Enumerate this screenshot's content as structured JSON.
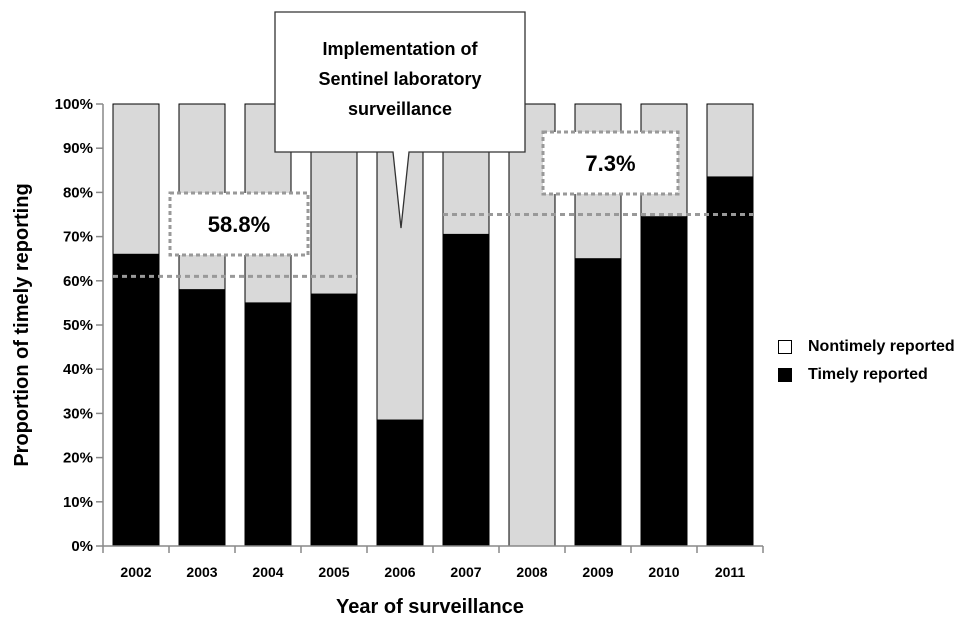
{
  "chart_data": {
    "type": "bar",
    "stacked": true,
    "categories": [
      "2002",
      "2003",
      "2004",
      "2005",
      "2006",
      "2007",
      "2008",
      "2009",
      "2010",
      "2011"
    ],
    "series": [
      {
        "name": "Timely reported",
        "values": [
          66,
          58,
          55,
          57,
          28.5,
          70.5,
          0,
          65,
          74.5,
          83.5
        ],
        "color": "#000000"
      },
      {
        "name": "Nontimely reported",
        "values": [
          34,
          42,
          45,
          43,
          71.5,
          29.5,
          100,
          35,
          25.5,
          16.5
        ],
        "color": "#d9d9d9"
      }
    ],
    "xlabel": "Year of surveillance",
    "ylabel": "Proportion of timely reporting",
    "ylim": [
      0,
      100
    ],
    "yticks": [
      "0%",
      "10%",
      "20%",
      "30%",
      "40%",
      "50%",
      "60%",
      "70%",
      "80%",
      "90%",
      "100%"
    ],
    "reference_lines": [
      {
        "label": "58.8%",
        "value": 61,
        "from": "2002",
        "to": "2005"
      },
      {
        "label": "7.3%",
        "value": 75,
        "from": "2007",
        "to": "2011"
      }
    ],
    "callout": {
      "lines": [
        "Implementation of",
        "Sentinel laboratory",
        "surveillance"
      ],
      "points_to": "2006"
    },
    "legend_position": "right"
  }
}
